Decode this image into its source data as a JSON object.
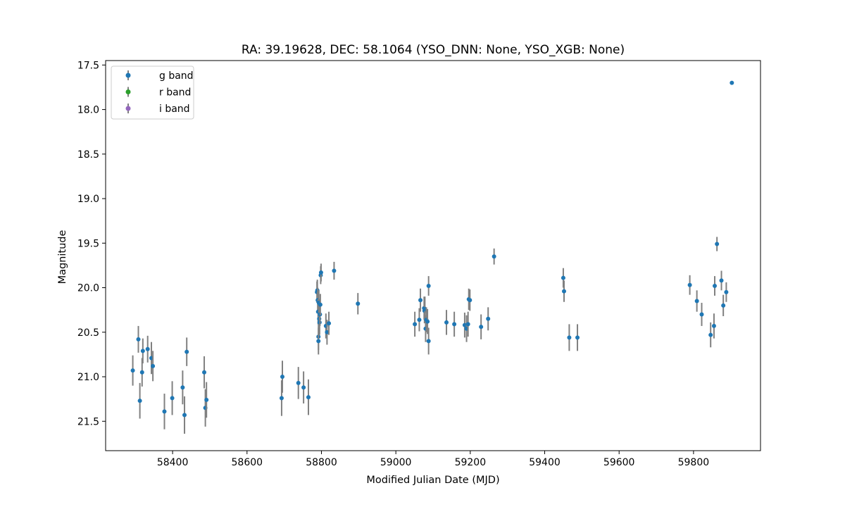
{
  "chart_data": {
    "type": "scatter",
    "title": "RA: 39.19628, DEC: 58.1064 (YSO_DNN: None, YSO_XGB: None)",
    "xlabel": "Modified Julian Date (MJD)",
    "ylabel": "Magnitude",
    "xlim": [
      58220,
      59980
    ],
    "ylim": [
      21.83,
      17.45
    ],
    "y_inverted": true,
    "xticks": [
      58400,
      58600,
      58800,
      59000,
      59200,
      59400,
      59600,
      59800
    ],
    "xtick_labels": [
      "58400",
      "58600",
      "58800",
      "59000",
      "59200",
      "59400",
      "59600",
      "59800"
    ],
    "yticks": [
      17.5,
      18.0,
      18.5,
      19.0,
      19.5,
      20.0,
      20.5,
      21.0,
      21.5
    ],
    "ytick_labels": [
      "17.5",
      "18.0",
      "18.5",
      "19.0",
      "19.5",
      "20.0",
      "20.5",
      "21.0",
      "21.5"
    ],
    "grid": false,
    "legend_placement": "upper-left",
    "errorbar_color": "#808080",
    "series": [
      {
        "name": "g band",
        "color": "#1f77b4",
        "points": [
          [
            58293,
            20.93,
            0.17
          ],
          [
            58308,
            20.58,
            0.15
          ],
          [
            58312,
            21.27,
            0.2
          ],
          [
            58318,
            20.95,
            0.16
          ],
          [
            58320,
            20.71,
            0.14
          ],
          [
            58333,
            20.69,
            0.15
          ],
          [
            58343,
            20.79,
            0.18
          ],
          [
            58347,
            20.88,
            0.17
          ],
          [
            58378,
            21.39,
            0.2
          ],
          [
            58399,
            21.24,
            0.19
          ],
          [
            58427,
            21.12,
            0.19
          ],
          [
            58432,
            21.43,
            0.21
          ],
          [
            58438,
            20.72,
            0.16
          ],
          [
            58485,
            20.95,
            0.18
          ],
          [
            58488,
            21.35,
            0.21
          ],
          [
            58491,
            21.26,
            0.2
          ],
          [
            58693,
            21.24,
            0.2
          ],
          [
            58695,
            21.0,
            0.18
          ],
          [
            58738,
            21.07,
            0.18
          ],
          [
            58752,
            21.12,
            0.18
          ],
          [
            58765,
            21.23,
            0.2
          ],
          [
            58788,
            20.05,
            0.12
          ],
          [
            58789,
            20.03,
            0.12
          ],
          [
            58790,
            20.14,
            0.14
          ],
          [
            58791,
            20.27,
            0.14
          ],
          [
            58792,
            20.55,
            0.15
          ],
          [
            58792,
            20.6,
            0.15
          ],
          [
            58793,
            20.17,
            0.14
          ],
          [
            58794,
            20.35,
            0.14
          ],
          [
            58795,
            20.39,
            0.14
          ],
          [
            58796,
            20.3,
            0.13
          ],
          [
            58797,
            20.19,
            0.12
          ],
          [
            58798,
            19.86,
            0.1
          ],
          [
            58799,
            19.83,
            0.1
          ],
          [
            58812,
            20.43,
            0.14
          ],
          [
            58815,
            20.5,
            0.14
          ],
          [
            58820,
            20.4,
            0.13
          ],
          [
            58834,
            19.81,
            0.1
          ],
          [
            58898,
            20.18,
            0.12
          ],
          [
            59051,
            20.41,
            0.14
          ],
          [
            59063,
            20.36,
            0.13
          ],
          [
            59066,
            20.14,
            0.13
          ],
          [
            59076,
            20.23,
            0.13
          ],
          [
            59077,
            20.26,
            0.14
          ],
          [
            59078,
            20.24,
            0.14
          ],
          [
            59080,
            20.46,
            0.15
          ],
          [
            59082,
            20.36,
            0.14
          ],
          [
            59085,
            20.38,
            0.14
          ],
          [
            59088,
            20.6,
            0.15
          ],
          [
            59088,
            19.98,
            0.11
          ],
          [
            59136,
            20.39,
            0.14
          ],
          [
            59157,
            20.41,
            0.14
          ],
          [
            59185,
            20.42,
            0.14
          ],
          [
            59190,
            20.46,
            0.15
          ],
          [
            59194,
            20.41,
            0.14
          ],
          [
            59196,
            20.13,
            0.12
          ],
          [
            59199,
            20.14,
            0.12
          ],
          [
            59229,
            20.44,
            0.14
          ],
          [
            59248,
            20.35,
            0.13
          ],
          [
            59264,
            19.65,
            0.09
          ],
          [
            59450,
            19.89,
            0.11
          ],
          [
            59452,
            20.04,
            0.12
          ],
          [
            59466,
            20.56,
            0.15
          ],
          [
            59488,
            20.56,
            0.15
          ],
          [
            59790,
            19.97,
            0.11
          ],
          [
            59809,
            20.15,
            0.12
          ],
          [
            59822,
            20.3,
            0.13
          ],
          [
            59846,
            20.53,
            0.14
          ],
          [
            59855,
            20.43,
            0.14
          ],
          [
            59857,
            19.98,
            0.11
          ],
          [
            59863,
            19.51,
            0.08
          ],
          [
            59875,
            19.92,
            0.11
          ],
          [
            59880,
            20.2,
            0.12
          ],
          [
            59888,
            20.05,
            0.11
          ],
          [
            59903,
            17.7,
            0.0
          ]
        ]
      },
      {
        "name": "r band",
        "color": "#2ca02c",
        "points": []
      },
      {
        "name": "i band",
        "color": "#9467bd",
        "points": []
      }
    ]
  }
}
